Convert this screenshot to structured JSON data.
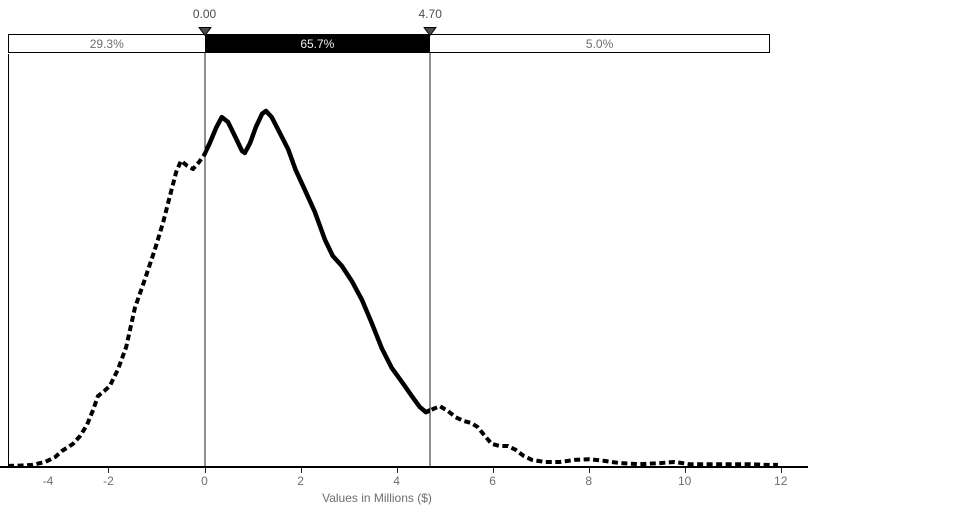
{
  "colors": {
    "curve": "#000000",
    "band_inside_bg": "#000000",
    "band_outside_bg": "#ffffff",
    "band_inside_text": "#efefef",
    "label_gray": "#6e6e6e",
    "marker_text": "#4d4d4d",
    "grabber_fill": "#4a4a4a",
    "axis": "#000000"
  },
  "chart_data": {
    "type": "line",
    "title": "",
    "xlabel": "Values in Millions ($)",
    "ylabel": "",
    "grid": false,
    "legend": "none",
    "x_ticks": [
      -4,
      -2,
      0,
      2,
      4,
      6,
      8,
      10,
      12
    ],
    "x_tick_labels": [
      "-4",
      "-2",
      "0",
      "2",
      "4",
      "6",
      "8",
      "10",
      "12"
    ],
    "xlim": [
      -4.1,
      12.6
    ],
    "ylim": [
      0,
      1.05
    ],
    "y_axis_shown": false,
    "markers": [
      {
        "label": "0.00",
        "value": 0.0
      },
      {
        "label": "4.70",
        "value": 4.7
      }
    ],
    "certainty_bands": [
      {
        "label": "29.3%",
        "from": -4.1,
        "to": 0.0,
        "style": "outside"
      },
      {
        "label": "65.7%",
        "from": 0.0,
        "to": 4.7,
        "style": "inside"
      },
      {
        "label": "5.0%",
        "from": 4.7,
        "to": 11.9,
        "style": "outside"
      }
    ],
    "curve_style": {
      "inside_range": "solid",
      "outside_range": "dashed"
    },
    "curve": [
      [
        -4.09,
        0.003
      ],
      [
        -3.84,
        0.004
      ],
      [
        -3.59,
        0.006
      ],
      [
        -3.32,
        0.014
      ],
      [
        -3.11,
        0.028
      ],
      [
        -2.97,
        0.045
      ],
      [
        -2.84,
        0.056
      ],
      [
        -2.74,
        0.065
      ],
      [
        -2.59,
        0.087
      ],
      [
        -2.45,
        0.118
      ],
      [
        -2.32,
        0.16
      ],
      [
        -2.22,
        0.199
      ],
      [
        -2.09,
        0.213
      ],
      [
        -1.97,
        0.228
      ],
      [
        -1.8,
        0.275
      ],
      [
        -1.63,
        0.337
      ],
      [
        -1.45,
        0.447
      ],
      [
        -1.24,
        0.528
      ],
      [
        -1.03,
        0.612
      ],
      [
        -0.86,
        0.688
      ],
      [
        -0.72,
        0.761
      ],
      [
        -0.59,
        0.829
      ],
      [
        -0.49,
        0.86
      ],
      [
        -0.36,
        0.846
      ],
      [
        -0.24,
        0.837
      ],
      [
        -0.11,
        0.857
      ],
      [
        -0.01,
        0.876
      ],
      [
        0.11,
        0.91
      ],
      [
        0.24,
        0.952
      ],
      [
        0.36,
        0.983
      ],
      [
        0.49,
        0.969
      ],
      [
        0.63,
        0.93
      ],
      [
        0.78,
        0.888
      ],
      [
        0.84,
        0.882
      ],
      [
        0.95,
        0.91
      ],
      [
        1.07,
        0.955
      ],
      [
        1.2,
        0.992
      ],
      [
        1.28,
        1.0
      ],
      [
        1.4,
        0.983
      ],
      [
        1.57,
        0.938
      ],
      [
        1.74,
        0.893
      ],
      [
        1.9,
        0.834
      ],
      [
        2.09,
        0.778
      ],
      [
        2.3,
        0.716
      ],
      [
        2.51,
        0.638
      ],
      [
        2.67,
        0.593
      ],
      [
        2.86,
        0.565
      ],
      [
        3.07,
        0.522
      ],
      [
        3.28,
        0.469
      ],
      [
        3.49,
        0.402
      ],
      [
        3.69,
        0.334
      ],
      [
        3.9,
        0.278
      ],
      [
        4.11,
        0.239
      ],
      [
        4.32,
        0.199
      ],
      [
        4.48,
        0.169
      ],
      [
        4.61,
        0.154
      ],
      [
        4.76,
        0.163
      ],
      [
        4.9,
        0.171
      ],
      [
        5.07,
        0.157
      ],
      [
        5.23,
        0.14
      ],
      [
        5.4,
        0.129
      ],
      [
        5.55,
        0.124
      ],
      [
        5.69,
        0.112
      ],
      [
        5.84,
        0.087
      ],
      [
        5.98,
        0.065
      ],
      [
        6.15,
        0.059
      ],
      [
        6.32,
        0.059
      ],
      [
        6.48,
        0.048
      ],
      [
        6.65,
        0.031
      ],
      [
        6.82,
        0.02
      ],
      [
        7.09,
        0.014
      ],
      [
        7.4,
        0.014
      ],
      [
        7.71,
        0.02
      ],
      [
        8.02,
        0.022
      ],
      [
        8.33,
        0.017
      ],
      [
        8.65,
        0.011
      ],
      [
        9.06,
        0.008
      ],
      [
        9.48,
        0.011
      ],
      [
        9.79,
        0.014
      ],
      [
        10.1,
        0.008
      ],
      [
        10.52,
        0.008
      ],
      [
        10.94,
        0.008
      ],
      [
        11.35,
        0.008
      ],
      [
        11.67,
        0.006
      ],
      [
        11.94,
        0.006
      ]
    ]
  }
}
